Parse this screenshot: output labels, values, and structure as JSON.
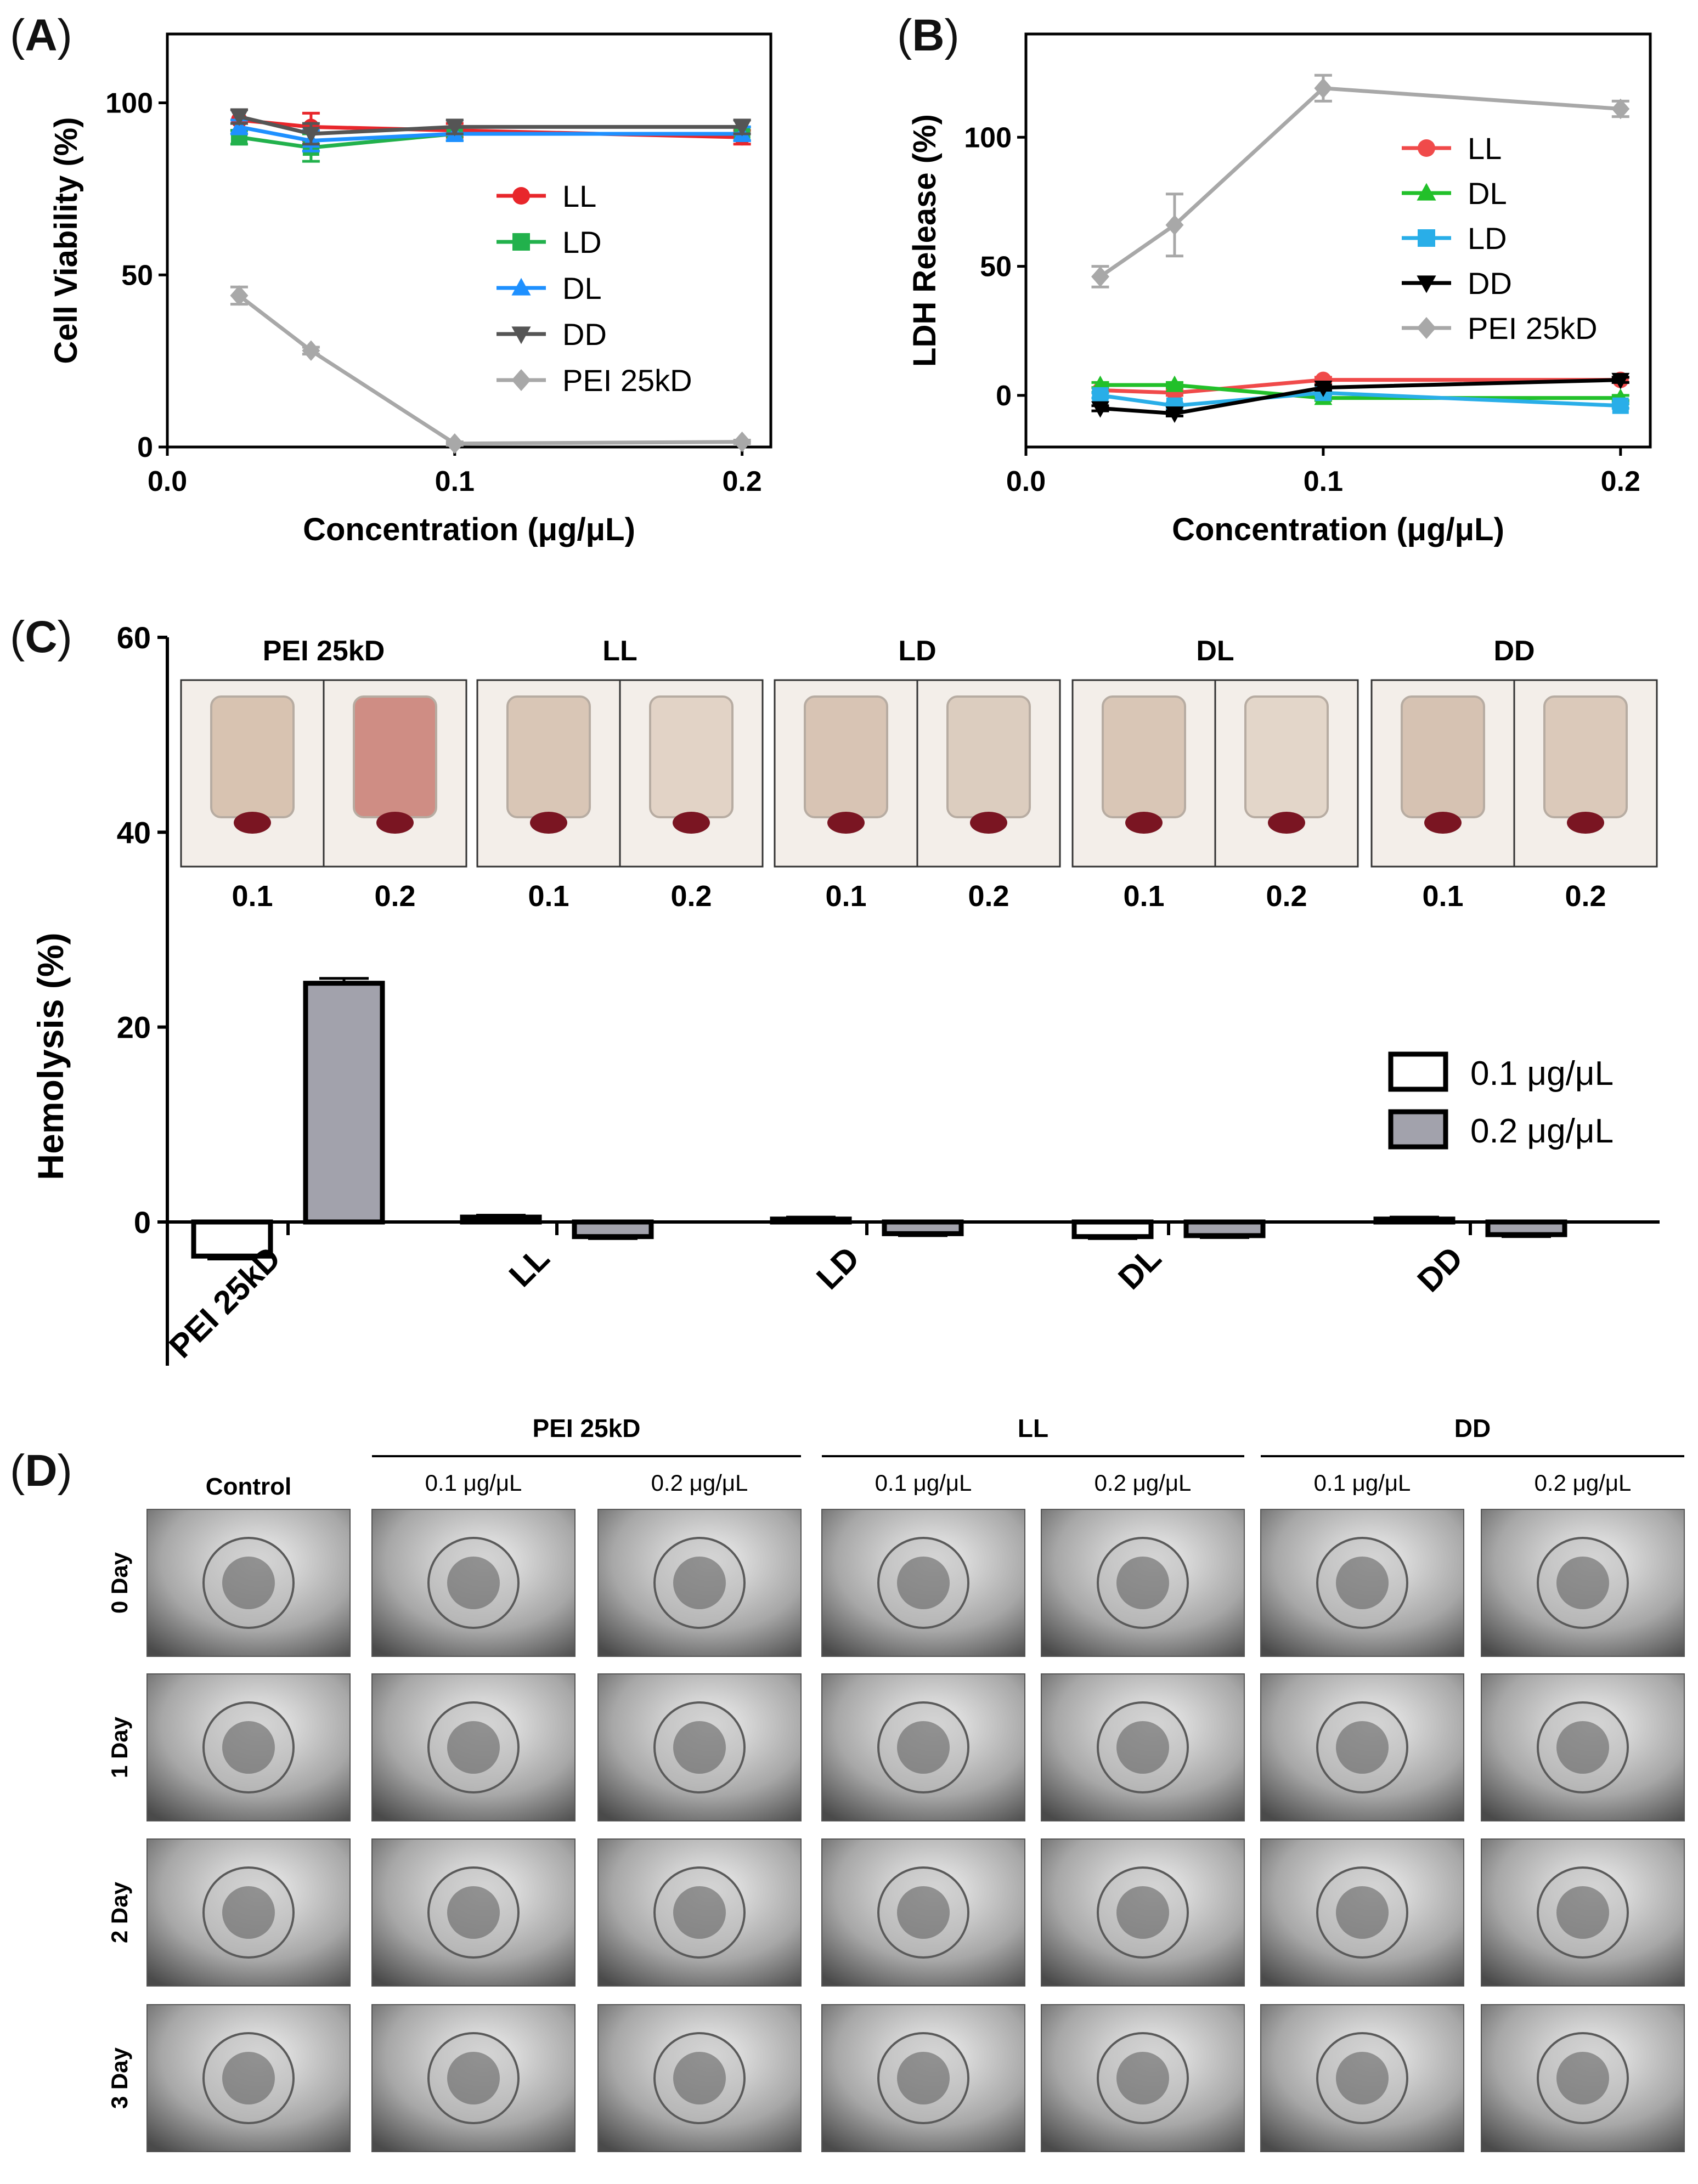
{
  "panels": {
    "A": {
      "label_open": "(",
      "label": "A",
      "label_close": ")"
    },
    "B": {
      "label_open": "(",
      "label": "B",
      "label_close": ")"
    },
    "C": {
      "label_open": "(",
      "label": "C",
      "label_close": ")"
    },
    "D": {
      "label_open": "(",
      "label": "D",
      "label_close": ")"
    }
  },
  "chart_data": [
    {
      "id": "A",
      "type": "line",
      "xlabel": "Concentration (μg/μL)",
      "ylabel": "Cell Viability (%)",
      "xlim": [
        0.0,
        0.21
      ],
      "ylim": [
        0,
        120
      ],
      "xticks": [
        0.0,
        0.1,
        0.2
      ],
      "xtick_labels": [
        "0.0",
        "0.1",
        "0.2"
      ],
      "yticks": [
        0,
        50,
        100
      ],
      "ytick_labels": [
        "0",
        "50",
        "100"
      ],
      "legend_position": "center-right",
      "x": [
        0.025,
        0.05,
        0.1,
        0.2
      ],
      "series": [
        {
          "name": "LL",
          "color": "#e8262b",
          "marker": "circle",
          "values": [
            95,
            93,
            92,
            90
          ],
          "errors": [
            3,
            4,
            2,
            2
          ]
        },
        {
          "name": "LD",
          "color": "#22b14c",
          "marker": "square",
          "values": [
            90,
            87,
            91,
            91
          ],
          "errors": [
            2,
            4,
            2,
            2
          ]
        },
        {
          "name": "DL",
          "color": "#1e90ff",
          "marker": "triangle-up",
          "values": [
            93,
            89,
            91,
            91
          ],
          "errors": [
            2,
            3,
            2,
            2
          ]
        },
        {
          "name": "DD",
          "color": "#555555",
          "marker": "triangle-down",
          "values": [
            96,
            91,
            93,
            93
          ],
          "errors": [
            2,
            3,
            2,
            2
          ]
        },
        {
          "name": "PEI 25kD",
          "color": "#a8a8a8",
          "marker": "diamond",
          "values": [
            44,
            28,
            1,
            1.5
          ],
          "errors": [
            2.5,
            1,
            0.5,
            0.5
          ]
        }
      ]
    },
    {
      "id": "B",
      "type": "line",
      "xlabel": "Concentration (μg/μL)",
      "ylabel": "LDH Release (%)",
      "xlim": [
        0.0,
        0.21
      ],
      "ylim": [
        -20,
        140
      ],
      "xticks": [
        0.0,
        0.1,
        0.2
      ],
      "xtick_labels": [
        "0.0",
        "0.1",
        "0.2"
      ],
      "yticks": [
        0,
        50,
        100
      ],
      "ytick_labels": [
        "0",
        "50",
        "100"
      ],
      "legend_position": "right",
      "x": [
        0.025,
        0.05,
        0.1,
        0.2
      ],
      "series": [
        {
          "name": "LL",
          "color": "#f04a4a",
          "marker": "circle",
          "values": [
            2,
            1,
            6,
            6
          ],
          "errors": [
            1,
            1,
            1,
            1
          ]
        },
        {
          "name": "DL",
          "color": "#22c02a",
          "marker": "triangle-up",
          "values": [
            4,
            4,
            -1,
            -1
          ],
          "errors": [
            1,
            1,
            1,
            1
          ]
        },
        {
          "name": "LD",
          "color": "#29aee8",
          "marker": "square",
          "values": [
            0,
            -4,
            1,
            -4
          ],
          "errors": [
            1,
            1,
            1,
            1
          ]
        },
        {
          "name": "DD",
          "color": "#000000",
          "marker": "triangle-down",
          "values": [
            -5,
            -7,
            3,
            6
          ],
          "errors": [
            1,
            1,
            1,
            1
          ]
        },
        {
          "name": "PEI 25kD",
          "color": "#a8a8a8",
          "marker": "diamond",
          "values": [
            46,
            66,
            119,
            111
          ],
          "errors": [
            4,
            12,
            5,
            3
          ]
        }
      ]
    },
    {
      "id": "C",
      "type": "bar",
      "ylabel": "Hemolysis (%)",
      "ylim": [
        -15,
        60
      ],
      "yticks": [
        0,
        20,
        40,
        60
      ],
      "ytick_labels": [
        "0",
        "20",
        "40",
        "60"
      ],
      "categories": [
        "PEI 25kD",
        "LL",
        "LD",
        "DL",
        "DD"
      ],
      "legend_position": "right",
      "series": [
        {
          "name": "0.1 μg/μL",
          "color": "#ffffff",
          "values": [
            -3.5,
            0.5,
            0.3,
            -1.5,
            0.3
          ],
          "errors": [
            0.3,
            0.2,
            0.2,
            0.2,
            0.2
          ]
        },
        {
          "name": "0.2 μg/μL",
          "color": "#a2a2ac",
          "values": [
            24.5,
            -1.5,
            -1.2,
            -1.4,
            -1.3
          ],
          "errors": [
            0.5,
            0.2,
            0.2,
            0.2,
            0.2
          ]
        }
      ]
    }
  ],
  "hemolysis_inset": {
    "groups": [
      {
        "title": "PEI 25kD",
        "labels": [
          "0.1",
          "0.2"
        ]
      },
      {
        "title": "LL",
        "labels": [
          "0.1",
          "0.2"
        ]
      },
      {
        "title": "LD",
        "labels": [
          "0.1",
          "0.2"
        ]
      },
      {
        "title": "DL",
        "labels": [
          "0.1",
          "0.2"
        ]
      },
      {
        "title": "DD",
        "labels": [
          "0.1",
          "0.2"
        ]
      }
    ]
  },
  "zebrafish": {
    "control_label": "Control",
    "groups": [
      {
        "title": "PEI 25kD",
        "columns": [
          "0.1 μg/μL",
          "0.2 μg/μL"
        ]
      },
      {
        "title": "LL",
        "columns": [
          "0.1 μg/μL",
          "0.2 μg/μL"
        ]
      },
      {
        "title": "DD",
        "columns": [
          "0.1 μg/μL",
          "0.2 μg/μL"
        ]
      }
    ],
    "rows": [
      "0 Day",
      "1 Day",
      "2 Day",
      "3 Day"
    ]
  }
}
